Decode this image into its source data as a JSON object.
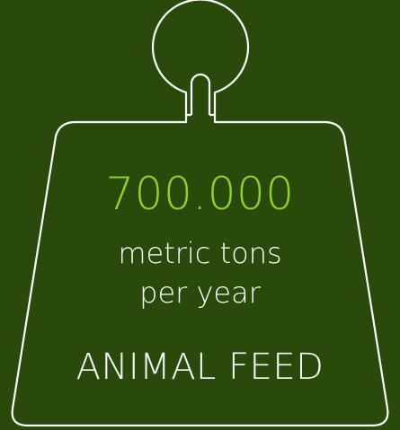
{
  "colors": {
    "background": "#2a4a0c",
    "accent": "#8fd32a",
    "text": "#ffffff",
    "outline": "#ffffff"
  },
  "icon": "weight-icon",
  "stat": {
    "amount": "700.000",
    "unit_line1": "metric tons",
    "unit_line2": "per year",
    "category": "ANIMAL FEED"
  }
}
